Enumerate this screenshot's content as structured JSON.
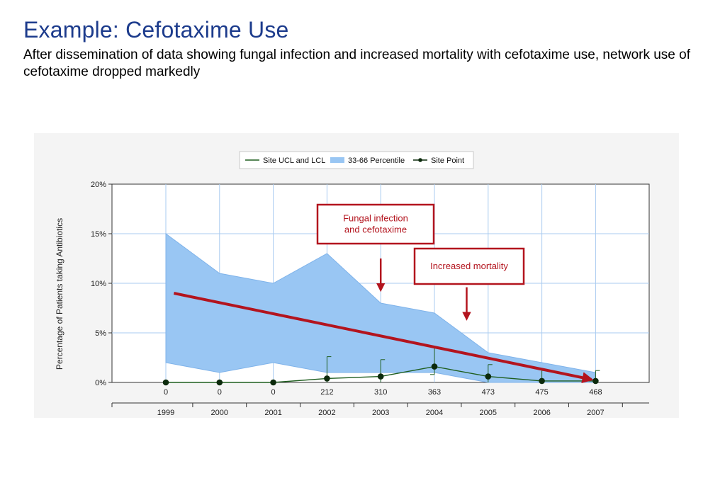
{
  "slide": {
    "title": "Example: Cefotaxime Use",
    "subtitle": "After dissemination of data showing fungal infection and increased mortality with cefotaxime use, network use of cefotaxime dropped markedly"
  },
  "chart_data": {
    "type": "area",
    "title": "",
    "xlabel": "",
    "ylabel": "Percentage of Patients taking Antibiotics",
    "ylim": [
      0,
      20
    ],
    "yticks": [
      0,
      5,
      10,
      15,
      20
    ],
    "ytick_labels": [
      "0%",
      "5%",
      "10%",
      "15%",
      "20%"
    ],
    "categories": [
      "1999",
      "2000",
      "2001",
      "2002",
      "2003",
      "2004",
      "2005",
      "2006",
      "2007"
    ],
    "n_labels": [
      "0",
      "0",
      "0",
      "212",
      "310",
      "363",
      "473",
      "475",
      "468"
    ],
    "grid": true,
    "legend_position": "top-center",
    "legend": [
      "Site UCL and LCL",
      "33-66 Percentile",
      "Site Point"
    ],
    "series": [
      {
        "name": "33-66 Percentile (upper)",
        "values": [
          15,
          11,
          10,
          13,
          8,
          7,
          3,
          2,
          1
        ]
      },
      {
        "name": "33-66 Percentile (lower)",
        "values": [
          2,
          1,
          2,
          1,
          1,
          1,
          0,
          0,
          0
        ]
      },
      {
        "name": "Site Point",
        "values": [
          0,
          0,
          0,
          0.4,
          0.6,
          1.6,
          0.6,
          0.15,
          0.15
        ]
      },
      {
        "name": "Site UCL",
        "values": [
          0,
          0,
          0,
          2.6,
          2.3,
          3.5,
          1.8,
          1.2,
          1.2
        ]
      },
      {
        "name": "Site LCL",
        "values": [
          0,
          0,
          0,
          0,
          0,
          0.8,
          0,
          0,
          0
        ]
      }
    ],
    "annotations": [
      {
        "label": "Fungal infection and cefotaxime",
        "lines": [
          "Fungal infection",
          "and cefotaxime"
        ],
        "arrow_x_index": 4,
        "arrow_from_value": 12.5,
        "arrow_to_value": 9.3
      },
      {
        "label": "Increased mortality",
        "lines": [
          "Increased mortality"
        ],
        "arrow_x_index": 5.6,
        "arrow_from_value": 9.6,
        "arrow_to_value": 6.4
      }
    ],
    "trend_arrow": {
      "from": [
        0.15,
        9.0
      ],
      "to": [
        8.0,
        0.3
      ],
      "color": "#b3141e"
    },
    "colors": {
      "band": "#99c6f3",
      "line": "#1f5e1f",
      "grid": "#a9cbf0",
      "accent": "#b3141e"
    }
  }
}
